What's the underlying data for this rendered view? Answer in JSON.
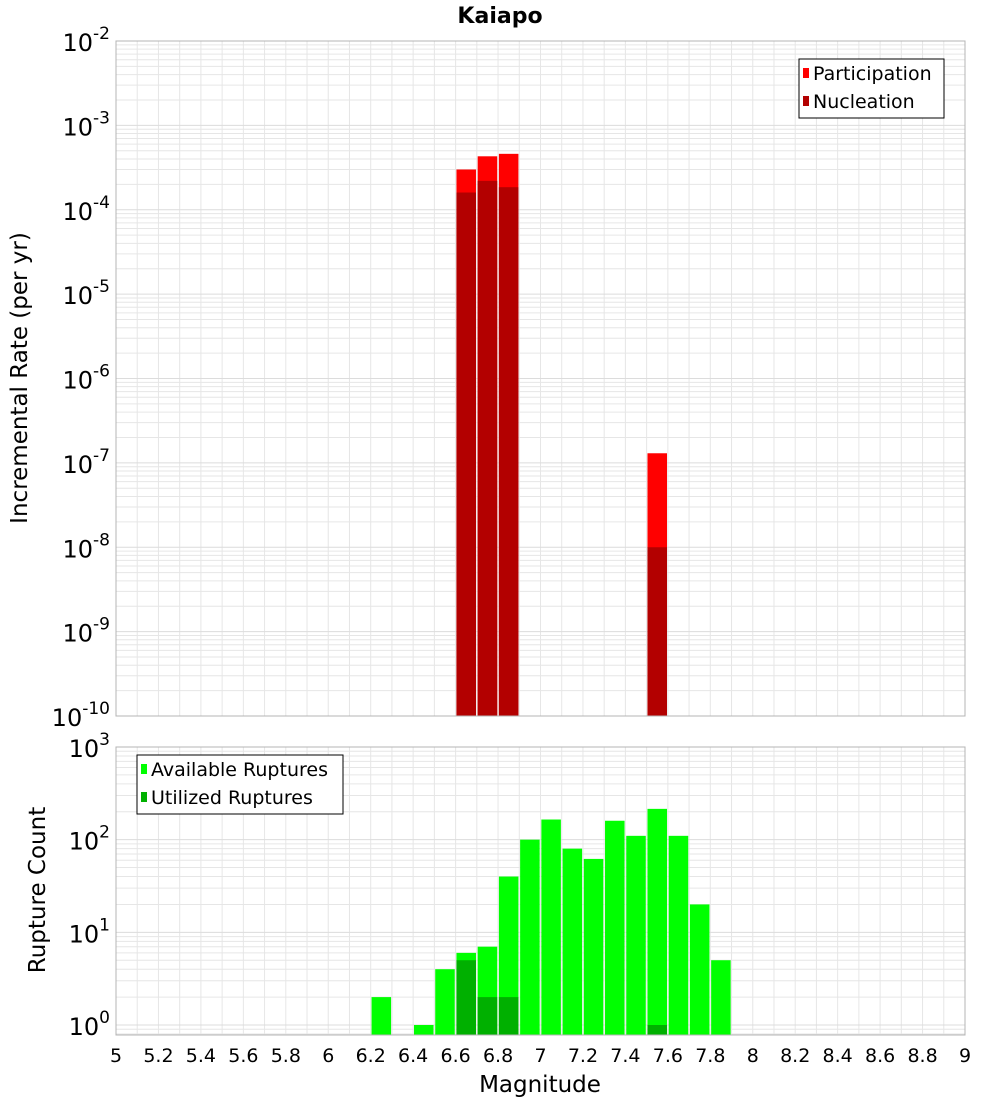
{
  "title": "Kaiapo",
  "xlabel": "Magnitude",
  "colors": {
    "participation": "#ff0000",
    "nucleation": "#b30000",
    "available": "#00ff00",
    "utilized": "#00b000",
    "grid": "#e6e6e6",
    "frame": "#b4b4b4"
  },
  "chart_data": [
    {
      "type": "bar",
      "scale": "log",
      "ylabel": "Incremental Rate (per yr)",
      "ylim": [
        1e-10,
        0.01
      ],
      "xlim": [
        5,
        9
      ],
      "ytick_exponents": [
        "-10",
        "-9",
        "-8",
        "-7",
        "-6",
        "-5",
        "-4",
        "-3",
        "-2"
      ],
      "legend_position": "top-right",
      "series": [
        {
          "name": "Participation",
          "x": [
            6.65,
            6.75,
            6.85,
            7.55
          ],
          "values": [
            0.0003,
            0.00043,
            0.00046,
            1.3e-07
          ]
        },
        {
          "name": "Nucleation",
          "x": [
            6.65,
            6.75,
            6.85,
            7.55
          ],
          "values": [
            0.00016,
            0.00022,
            0.000185,
            1e-08
          ]
        }
      ]
    },
    {
      "type": "bar",
      "scale": "log",
      "ylabel": "Rupture Count",
      "ylim": [
        0.78,
        1000
      ],
      "xlim": [
        5,
        9
      ],
      "ytick_exponents": [
        "0",
        "1",
        "2",
        "3"
      ],
      "legend_position": "top-left",
      "series": [
        {
          "name": "Available Ruptures",
          "x": [
            6.25,
            6.45,
            6.55,
            6.65,
            6.75,
            6.85,
            6.95,
            7.05,
            7.15,
            7.25,
            7.35,
            7.45,
            7.55,
            7.65,
            7.75,
            7.85
          ],
          "values": [
            2,
            1,
            4,
            6,
            7,
            40,
            100,
            165,
            80,
            62,
            160,
            110,
            215,
            110,
            20,
            5
          ]
        },
        {
          "name": "Utilized Ruptures",
          "x": [
            6.65,
            6.75,
            6.85,
            7.55
          ],
          "values": [
            5,
            2,
            2,
            1
          ]
        }
      ]
    }
  ],
  "xticks": [
    "5",
    "5.2",
    "5.4",
    "5.6",
    "5.8",
    "6",
    "6.2",
    "6.4",
    "6.6",
    "6.8",
    "7",
    "7.2",
    "7.4",
    "7.6",
    "7.8",
    "8",
    "8.2",
    "8.4",
    "8.6",
    "8.8",
    "9"
  ]
}
